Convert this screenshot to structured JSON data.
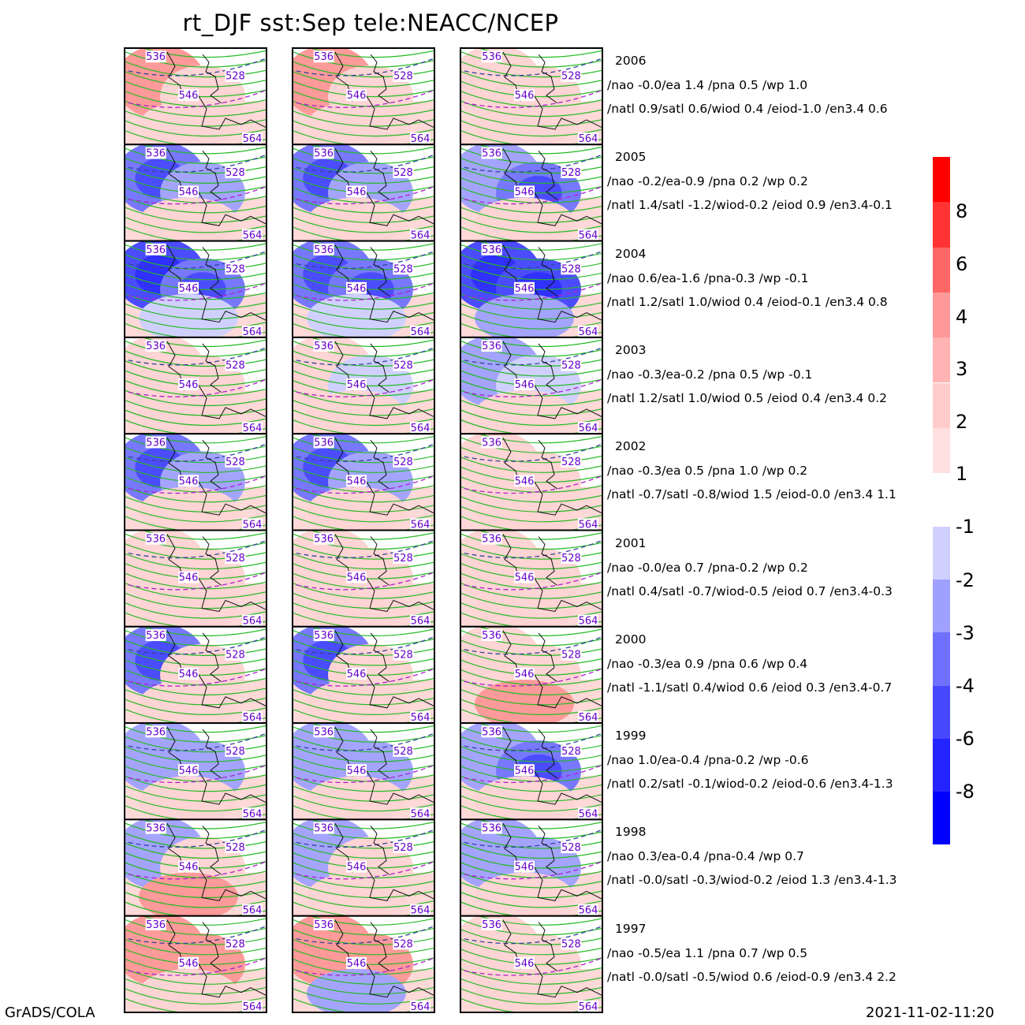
{
  "title": "rt_DJF  sst:Sep  tele:NEACC/NCEP",
  "footer_left": "GrADS/COLA",
  "footer_right": "2021-11-02-11:20",
  "chart_data": {
    "type": "heatmap",
    "description_columns": 3,
    "contour_labels": [
      "536",
      "528",
      "546",
      "564"
    ],
    "rows": [
      {
        "year": "2006",
        "line1": "/nao  -0.0/ea 1.4  /pna 0.5  /wp    1.0",
        "line2": "/natl   0.9/satl   0.6/wiod 0.4  /eiod-1.0  /en3.4  0.6",
        "anom": [
          [
            2,
            1,
            1
          ],
          [
            2,
            1,
            1
          ],
          [
            1,
            1,
            1
          ]
        ]
      },
      {
        "year": "2005",
        "line1": "/nao  -0.2/ea-0.9  /pna 0.2  /wp    0.2",
        "line2": "/natl   1.4/satl  -1.2/wiod-0.2  /eiod 0.9  /en3.4-0.1",
        "anom": [
          [
            -3,
            -2,
            1
          ],
          [
            -3,
            -2,
            1
          ],
          [
            -2,
            -3,
            1
          ]
        ]
      },
      {
        "year": "2004",
        "line1": "/nao   0.6/ea-1.6  /pna-0.3  /wp  -0.1",
        "line2": "/natl   1.2/satl   1.0/wiod 0.4  /eiod-0.1  /en3.4  0.8",
        "anom": [
          [
            -4,
            -3,
            -1
          ],
          [
            -3,
            -3,
            -1
          ],
          [
            -4,
            -4,
            -2
          ]
        ]
      },
      {
        "year": "2003",
        "line1": "/nao  -0.3/ea-0.2  /pna 0.5  /wp  -0.1",
        "line2": "/natl   1.2/satl   1.0/wiod 0.5  /eiod 0.4  /en3.4  0.2",
        "anom": [
          [
            1,
            1,
            1
          ],
          [
            1,
            -1,
            1
          ],
          [
            -2,
            -1,
            1
          ]
        ]
      },
      {
        "year": "2002",
        "line1": "/nao  -0.3/ea 0.5  /pna 1.0  /wp    0.2",
        "line2": "/natl  -0.7/satl  -0.8/wiod 1.5  /eiod-0.0  /en3.4  1.1",
        "anom": [
          [
            -3,
            -2,
            1
          ],
          [
            -3,
            -2,
            1
          ],
          [
            1,
            1,
            1
          ]
        ]
      },
      {
        "year": "2001",
        "line1": "/nao  -0.0/ea 0.7  /pna-0.2  /wp    0.2",
        "line2": "/natl   0.4/satl  -0.7/wiod-0.5  /eiod 0.7  /en3.4-0.3",
        "anom": [
          [
            1,
            1,
            1
          ],
          [
            1,
            1,
            1
          ],
          [
            1,
            1,
            1
          ]
        ]
      },
      {
        "year": "2000",
        "line1": "/nao  -0.3/ea 0.9  /pna 0.6  /wp    0.4",
        "line2": "/natl  -1.1/satl   0.4/wiod 0.6  /eiod 0.3  /en3.4-0.7",
        "anom": [
          [
            -3,
            1,
            1
          ],
          [
            -3,
            1,
            1
          ],
          [
            1,
            1,
            2
          ]
        ]
      },
      {
        "year": "1999",
        "line1": "/nao   1.0/ea-0.4  /pna-0.2  /wp  -0.6",
        "line2": "/natl   0.2/satl  -0.1/wiod-0.2  /eiod-0.6  /en3.4-1.3",
        "anom": [
          [
            -2,
            -2,
            1
          ],
          [
            -2,
            -2,
            1
          ],
          [
            -2,
            -3,
            1
          ]
        ]
      },
      {
        "year": "1998",
        "line1": "/nao   0.3/ea-0.4  /pna-0.4  /wp    0.7",
        "line2": "/natl  -0.0/satl  -0.3/wiod-0.2  /eiod 1.3  /en3.4-1.3",
        "anom": [
          [
            -2,
            1,
            2
          ],
          [
            -2,
            1,
            1
          ],
          [
            -2,
            -2,
            1
          ]
        ]
      },
      {
        "year": "1997",
        "line1": "/nao  -0.5/ea 1.1  /pna 0.7  /wp    0.5",
        "line2": "/natl  -0.0/satl  -0.5/wiod 0.6  /eiod-0.9  /en3.4  2.2",
        "anom": [
          [
            2,
            2,
            1
          ],
          [
            2,
            2,
            -2
          ],
          [
            1,
            1,
            1
          ]
        ]
      }
    ],
    "colorbar_positive": {
      "levels": [
        "8",
        "6",
        "4",
        "3",
        "2",
        "1"
      ],
      "colors": [
        "#ff0000",
        "#ff3333",
        "#ff6666",
        "#ff9999",
        "#ffb3b3",
        "#ffcccc",
        "#ffe0e0"
      ]
    },
    "colorbar_negative": {
      "levels": [
        "-1",
        "-2",
        "-3",
        "-4",
        "-6",
        "-8"
      ],
      "colors": [
        "#d0d0ff",
        "#a0a0ff",
        "#7070ff",
        "#4848ff",
        "#2424ff",
        "#0000ff"
      ]
    }
  }
}
